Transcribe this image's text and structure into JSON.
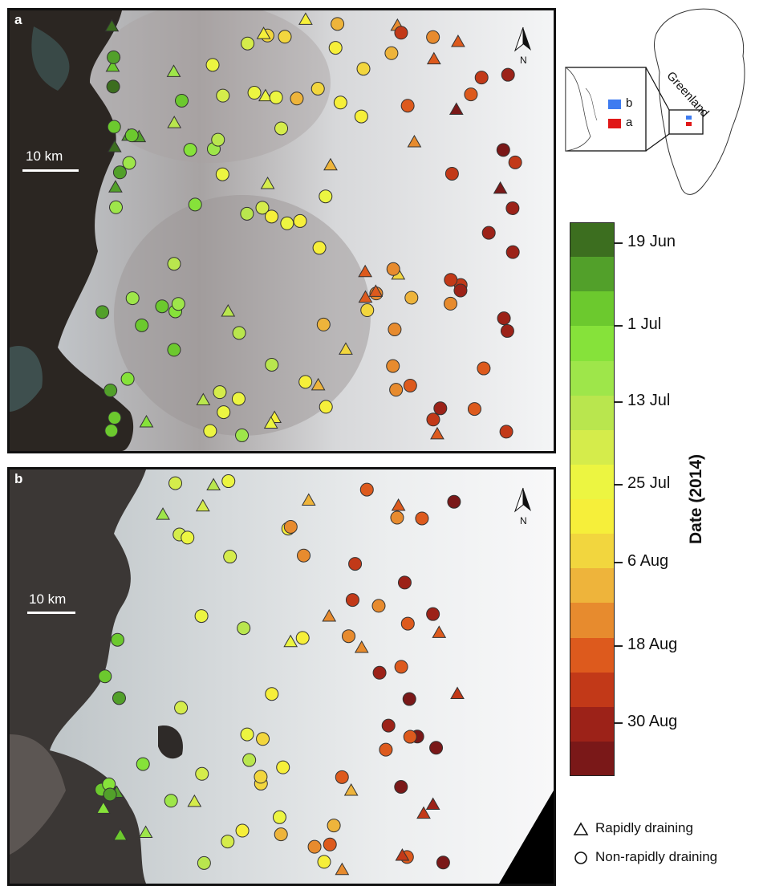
{
  "panels": {
    "a": {
      "letter": "a",
      "scale_label": "10 km",
      "north_label": "N"
    },
    "b": {
      "letter": "b",
      "scale_label": "10 km",
      "north_label": "N"
    }
  },
  "inset": {
    "country_label": "Greenland",
    "region_labels": {
      "b": "b",
      "a": "a"
    },
    "colors": {
      "b": "#3f7cf0",
      "a": "#e01818"
    }
  },
  "colorbar": {
    "title": "Date (2014)",
    "colors": [
      "#3c6e1f",
      "#52a02a",
      "#6cc92e",
      "#86e23a",
      "#9ee64a",
      "#b9e64e",
      "#d5ec4b",
      "#ecf541",
      "#f6ef3a",
      "#f2d63e",
      "#eeb43b",
      "#e78b2e",
      "#dd5a1d",
      "#c23918",
      "#9c2218",
      "#7a1818"
    ],
    "ticks": [
      "19 Jun",
      "1 Jul",
      "13 Jul",
      "25 Jul",
      "6 Aug",
      "18 Aug",
      "30 Aug"
    ]
  },
  "legend": {
    "triangle_label": "Rapidly draining",
    "circle_label": "Non-rapidly draining"
  }
}
